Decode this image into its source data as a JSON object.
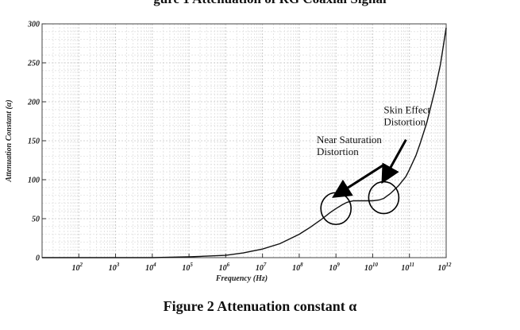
{
  "header_fragment": "gure 1 Attenuation of RG Coaxial Signal",
  "caption": "Figure 2 Attenuation constant α",
  "chart_data": {
    "type": "line",
    "title": "",
    "xlabel": "Frequency (Hz)",
    "ylabel": "Attenuation Constant (α)",
    "x_scale": "log",
    "xlim": [
      10,
      1000000000000
    ],
    "ylim": [
      0,
      300
    ],
    "grid": true,
    "x_ticks": [
      {
        "value": 100,
        "base": "10",
        "exp": "2"
      },
      {
        "value": 1000,
        "base": "10",
        "exp": "3"
      },
      {
        "value": 10000,
        "base": "10",
        "exp": "4"
      },
      {
        "value": 100000,
        "base": "10",
        "exp": "5"
      },
      {
        "value": 1000000,
        "base": "10",
        "exp": "6"
      },
      {
        "value": 10000000,
        "base": "10",
        "exp": "7"
      },
      {
        "value": 100000000,
        "base": "10",
        "exp": "8"
      },
      {
        "value": 1000000000,
        "base": "10",
        "exp": "9"
      },
      {
        "value": 10000000000,
        "base": "10",
        "exp": "10"
      },
      {
        "value": 100000000000,
        "base": "10",
        "exp": "11"
      },
      {
        "value": 1000000000000,
        "base": "10",
        "exp": "12"
      }
    ],
    "y_ticks": [
      0,
      50,
      100,
      150,
      200,
      250,
      300
    ],
    "series": [
      {
        "color": "#111111",
        "x": [
          10000,
          100000,
          1000000,
          3000000,
          10000000,
          30000000,
          100000000,
          200000000,
          400000000,
          700000000,
          1000000000,
          1500000000,
          2000000000,
          3000000000,
          5000000000,
          8000000000,
          10000000000,
          15000000000,
          20000000000,
          30000000000,
          50000000000,
          80000000000,
          100000000000,
          150000000000,
          200000000000,
          300000000000,
          500000000000,
          700000000000,
          1000000000000
        ],
        "y": [
          0,
          1,
          3,
          6,
          11,
          18,
          30,
          39,
          49,
          58,
          63,
          68,
          71,
          73,
          73,
          73,
          73,
          74,
          76,
          82,
          92,
          104,
          113,
          131,
          148,
          174,
          216,
          248,
          295
        ]
      }
    ],
    "annotations": [
      {
        "lines": [
          "Near Saturation",
          "Distortion"
        ],
        "x": 300000000,
        "y": 147,
        "arrow_to": {
          "x": 1000000000,
          "y": 80
        },
        "ellipse_at": {
          "x": 1000000000,
          "y": 63
        }
      },
      {
        "lines": [
          "Skin Effect",
          "Distortion"
        ],
        "x": 20000000000,
        "y": 185,
        "arrow_to": {
          "x": 20000000000,
          "y": 100
        },
        "ellipse_at": {
          "x": 20000000000,
          "y": 77
        }
      }
    ]
  }
}
